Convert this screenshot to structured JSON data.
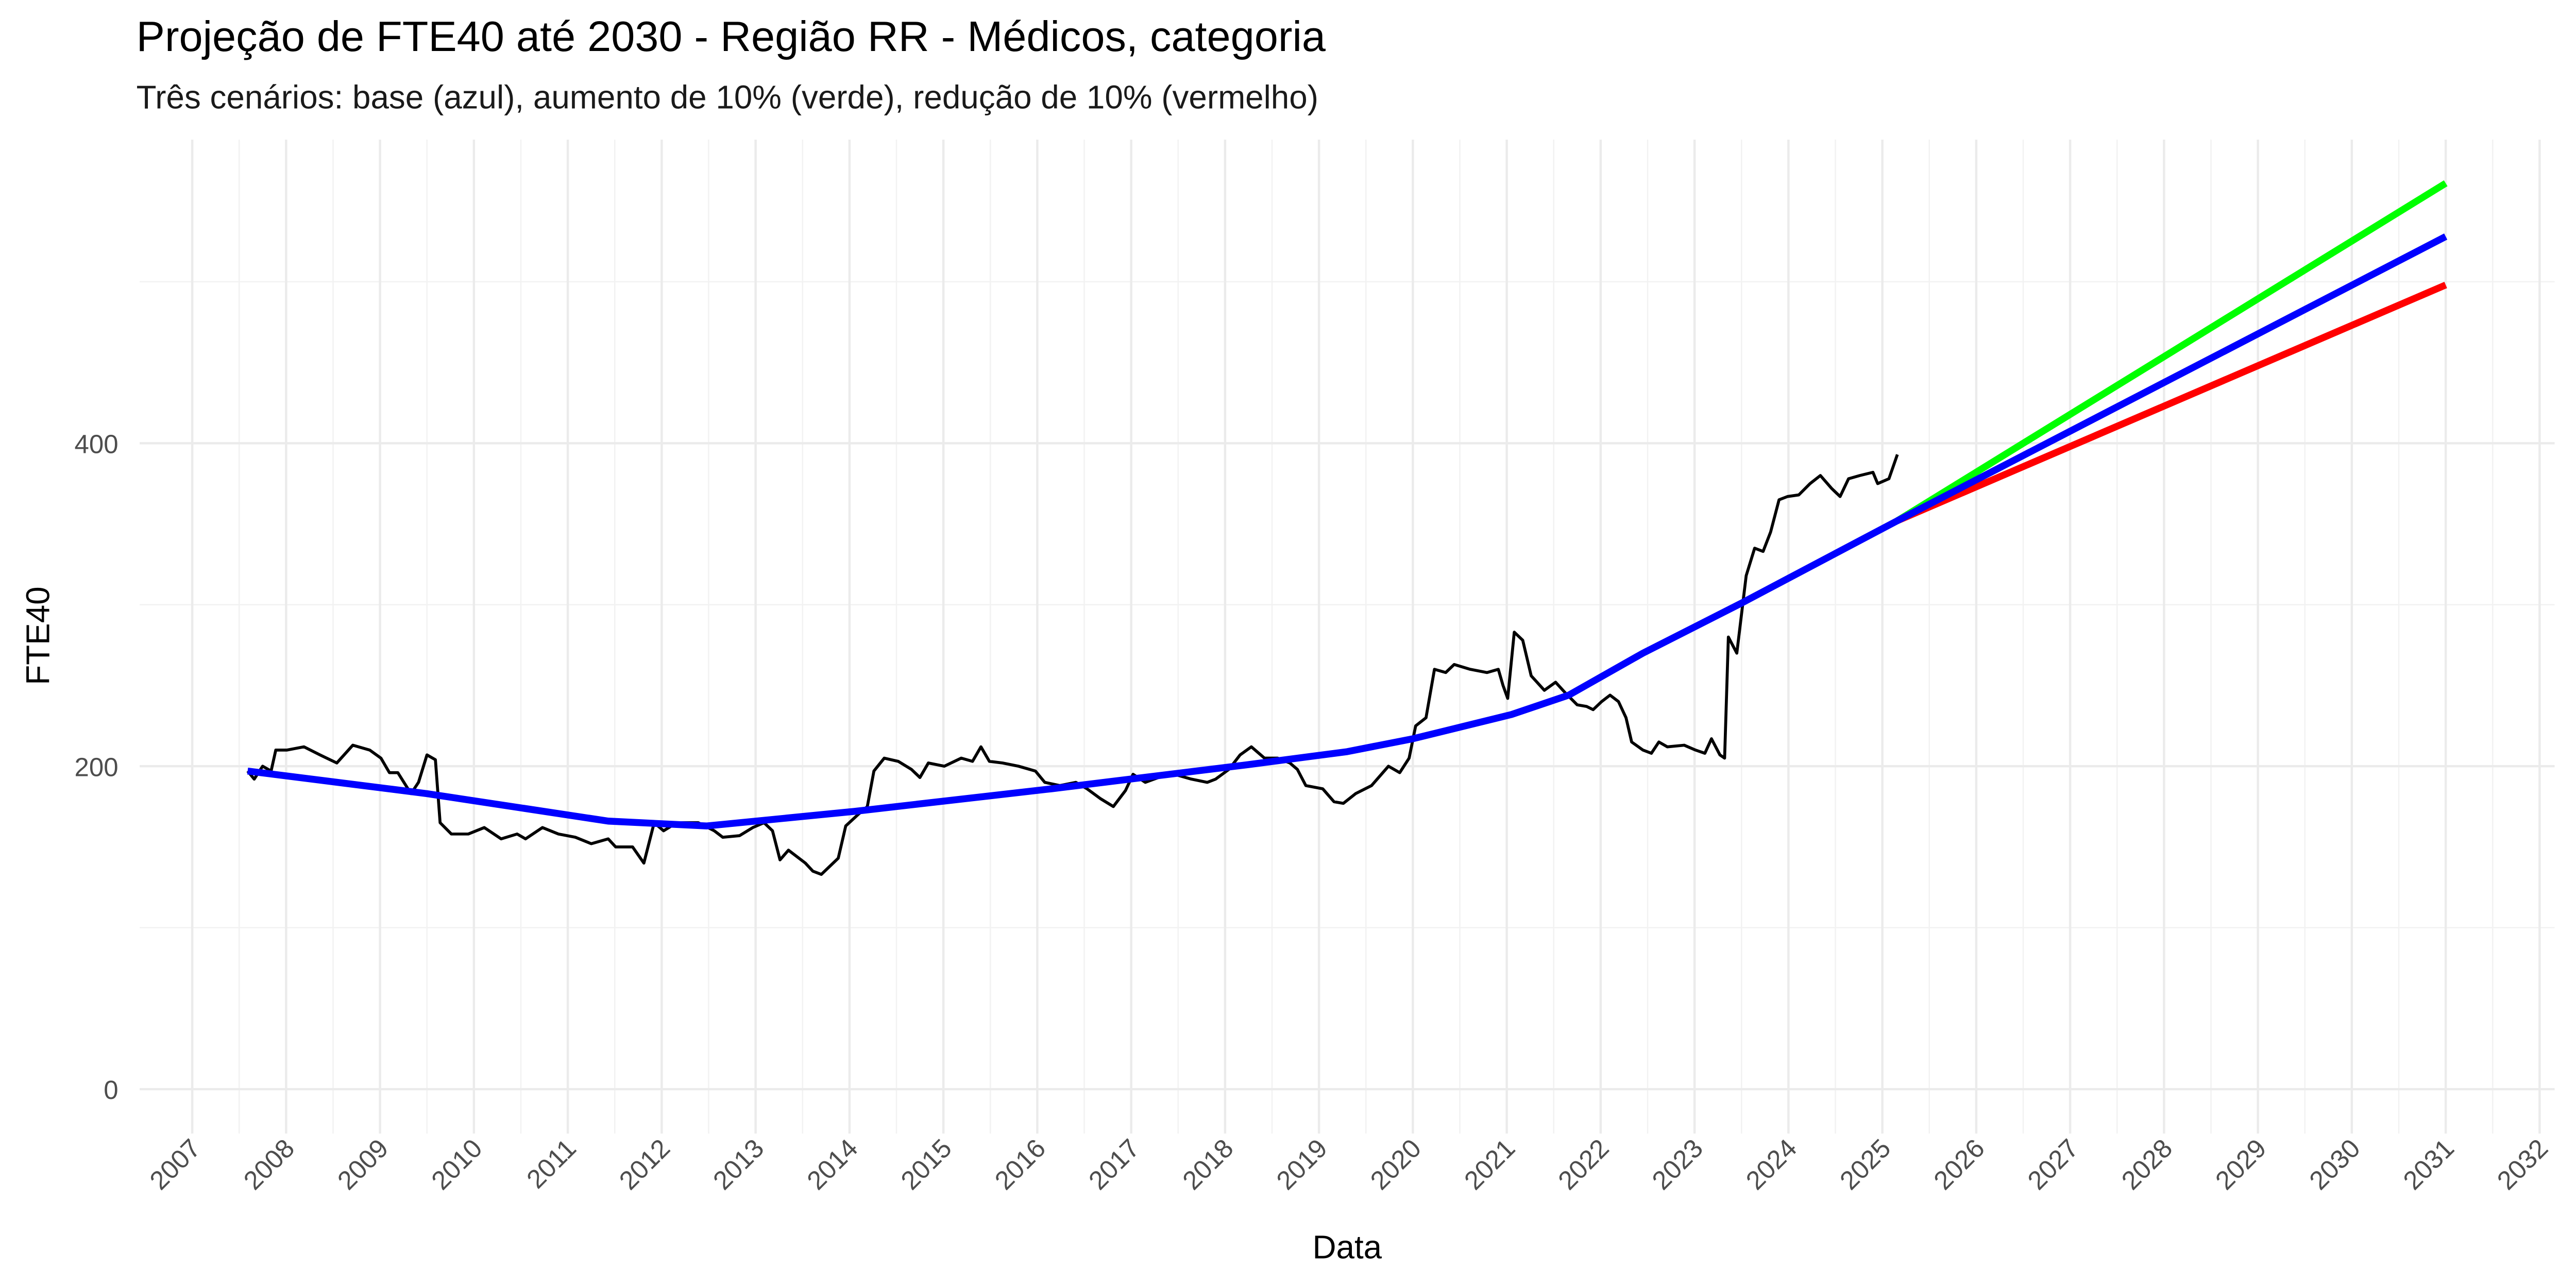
{
  "chart_data": {
    "type": "line",
    "title": "Projeção de FTE40 até 2030 - Região RR - Médicos, categoria",
    "subtitle": "Três cenários: base (azul), aumento de 10% (verde), redução de 10% (vermelho)",
    "x_label": "Data",
    "y_label": "FTE40",
    "xlim": [
      2006.44,
      2032.16
    ],
    "xticks": [
      2007,
      2008,
      2009,
      2010,
      2011,
      2012,
      2013,
      2014,
      2015,
      2016,
      2017,
      2018,
      2019,
      2020,
      2021,
      2022,
      2023,
      2024,
      2025,
      2026,
      2027,
      2028,
      2029,
      2030,
      2031,
      2032
    ],
    "ylim": [
      -27.5,
      588
    ],
    "yticks": [
      0,
      200,
      400
    ],
    "grid": true,
    "series": [
      {
        "color": "#000000",
        "x": [
          2007.59,
          2007.66,
          2007.75,
          2007.84,
          2007.89,
          2008.01,
          2008.19,
          2008.36,
          2008.54,
          2008.71,
          2008.89,
          2009.01,
          2009.1,
          2009.19,
          2009.33,
          2009.41,
          2009.5,
          2009.59,
          2009.64,
          2009.76,
          2009.94,
          2010.11,
          2010.29,
          2010.46,
          2010.55,
          2010.73,
          2010.9,
          2011.08,
          2011.25,
          2011.43,
          2011.51,
          2011.69,
          2011.81,
          2011.92,
          2012.02,
          2012.16,
          2012.39,
          2012.56,
          2012.65,
          2012.83,
          2012.97,
          2013.09,
          2013.18,
          2013.26,
          2013.35,
          2013.53,
          2013.61,
          2013.7,
          2013.79,
          2013.88,
          2013.96,
          2014.09,
          2014.19,
          2014.26,
          2014.37,
          2014.52,
          2014.66,
          2014.75,
          2014.84,
          2015.01,
          2015.19,
          2015.31,
          2015.4,
          2015.49,
          2015.63,
          2015.8,
          2015.98,
          2016.08,
          2016.24,
          2016.41,
          2016.53,
          2016.67,
          2016.81,
          2016.94,
          2017.02,
          2017.15,
          2017.29,
          2017.46,
          2017.64,
          2017.81,
          2017.9,
          2018.04,
          2018.16,
          2018.28,
          2018.42,
          2018.56,
          2018.69,
          2018.77,
          2018.86,
          2019.04,
          2019.16,
          2019.26,
          2019.39,
          2019.56,
          2019.74,
          2019.86,
          2019.96,
          2020.03,
          2020.14,
          2020.23,
          2020.35,
          2020.44,
          2020.61,
          2020.79,
          2020.91,
          2020.96,
          2021.01,
          2021.08,
          2021.17,
          2021.26,
          2021.4,
          2021.52,
          2021.63,
          2021.75,
          2021.85,
          2021.92,
          2022.01,
          2022.1,
          2022.19,
          2022.27,
          2022.33,
          2022.45,
          2022.54,
          2022.62,
          2022.71,
          2022.89,
          2023.01,
          2023.11,
          2023.18,
          2023.27,
          2023.32,
          2023.36,
          2023.45,
          2023.55,
          2023.64,
          2023.73,
          2023.81,
          2023.9,
          2023.99,
          2024.11,
          2024.23,
          2024.34,
          2024.46,
          2024.55,
          2024.64,
          2024.76,
          2024.9,
          2024.95,
          2025.07,
          2025.16
        ],
        "values": [
          197,
          192,
          200,
          197,
          210,
          210,
          212,
          207,
          202,
          213,
          210,
          205,
          196,
          196,
          183,
          190,
          207,
          204,
          165,
          158,
          158,
          162,
          155,
          158,
          155,
          162,
          158,
          156,
          152,
          155,
          150,
          150,
          140,
          165,
          160,
          165,
          165,
          160,
          156,
          157,
          162,
          165,
          160,
          142,
          148,
          140,
          135,
          133,
          138,
          143,
          163,
          170,
          175,
          197,
          205,
          203,
          198,
          193,
          202,
          200,
          205,
          203,
          212,
          203,
          202,
          200,
          197,
          190,
          188,
          190,
          186,
          180,
          175,
          185,
          195,
          190,
          193,
          195,
          192,
          190,
          192,
          198,
          207,
          212,
          205,
          205,
          202,
          198,
          188,
          186,
          178,
          177,
          183,
          188,
          200,
          196,
          205,
          225,
          230,
          260,
          258,
          263,
          260,
          258,
          260,
          250,
          242,
          283,
          278,
          256,
          247,
          252,
          245,
          238,
          237,
          235,
          240,
          244,
          240,
          230,
          215,
          210,
          208,
          215,
          212,
          213,
          210,
          208,
          217,
          207,
          205,
          280,
          270,
          318,
          335,
          333,
          345,
          365,
          367,
          368,
          375,
          380,
          372,
          367,
          378,
          380,
          382,
          375,
          378,
          393
        ]
      },
      {
        "color": "#00ff00",
        "x": [
          2025.16,
          2031.0
        ],
        "values": [
          352,
          561
        ]
      },
      {
        "color": "#ff0000",
        "x": [
          2025.16,
          2031.0
        ],
        "values": [
          352,
          498
        ]
      },
      {
        "color": "#0000ff",
        "x": [
          2007.59,
          2009.5,
          2011.43,
          2012.48,
          2014.05,
          2016.15,
          2018.25,
          2019.3,
          2020.0,
          2021.05,
          2021.66,
          2022.45,
          2023.5,
          2025.16,
          2031.0
        ],
        "values": [
          197,
          183,
          166,
          163,
          172,
          186,
          201,
          209,
          217,
          232,
          244,
          270,
          301,
          352,
          528
        ]
      }
    ]
  }
}
